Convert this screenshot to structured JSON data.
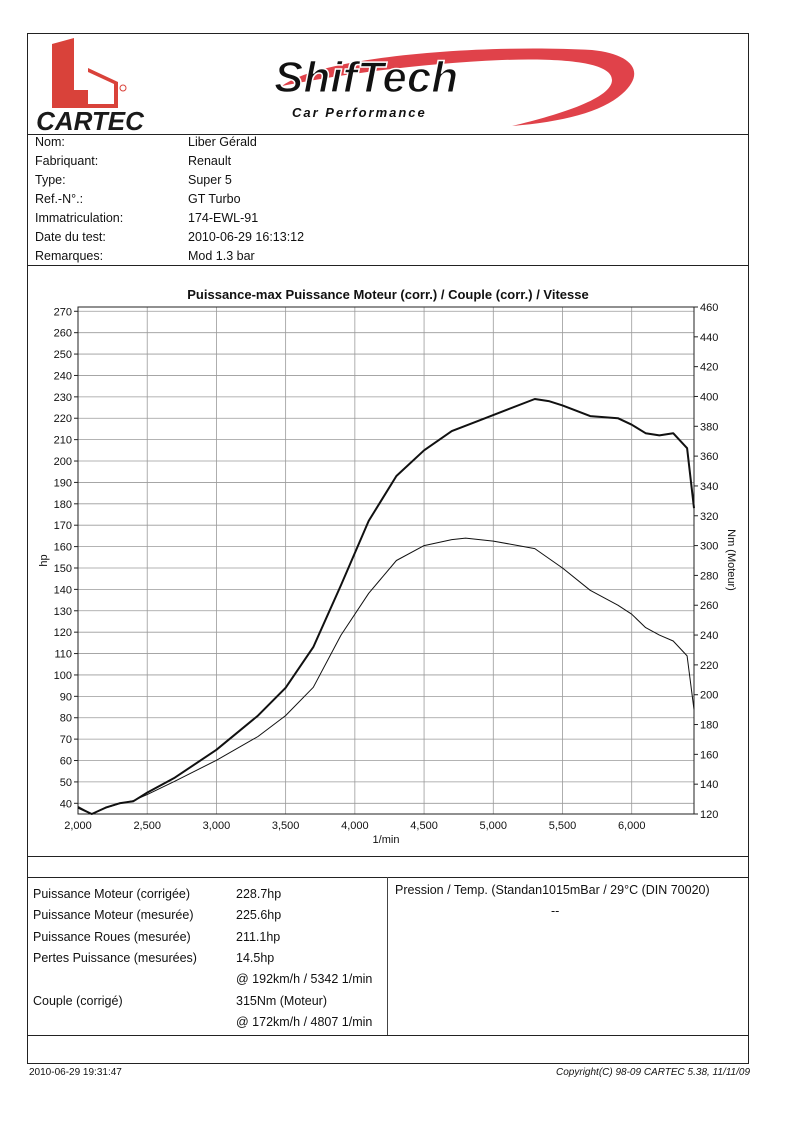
{
  "brand": {
    "cartec_label": "CARTEC",
    "shiftech_title": "ShifTech",
    "shiftech_subtitle": "Car Performance",
    "colors": {
      "red": "#e0424a",
      "dark": "#1a1a1a"
    }
  },
  "info": [
    {
      "label": "Nom:",
      "value": "Liber Gérald"
    },
    {
      "label": "Fabriquant:",
      "value": "Renault"
    },
    {
      "label": "Type:",
      "value": "Super 5"
    },
    {
      "label": "Ref.-N°.:",
      "value": "GT Turbo"
    },
    {
      "label": "Immatriculation:",
      "value": "174-EWL-91"
    },
    {
      "label": "Date du test:",
      "value": "2010-06-29 16:13:12"
    },
    {
      "label": "Remarques:",
      "value": "Mod 1.3 bar"
    }
  ],
  "chart_data": {
    "type": "line",
    "title": "Puissance-max Puissance Moteur (corr.) / Couple (corr.) / Vitesse",
    "xlabel": "1/min",
    "ylabel_left": "hp",
    "ylabel_right": "Nm (Moteur)",
    "xlim": [
      2000,
      6450
    ],
    "ylim_left": [
      35,
      272
    ],
    "ylim_right": [
      120,
      460
    ],
    "x_ticks": [
      2000,
      2500,
      3000,
      3500,
      4000,
      4500,
      5000,
      5500,
      6000
    ],
    "x_tick_labels": [
      "2,000",
      "2,500",
      "3,000",
      "3,500",
      "4,000",
      "4,500",
      "5,000",
      "5,500",
      "6,000"
    ],
    "y_left_ticks": [
      40,
      50,
      60,
      70,
      80,
      90,
      100,
      110,
      120,
      130,
      140,
      150,
      160,
      170,
      180,
      190,
      200,
      210,
      220,
      230,
      240,
      250,
      260,
      270
    ],
    "y_right_ticks": [
      120,
      140,
      160,
      180,
      200,
      220,
      240,
      260,
      280,
      300,
      320,
      340,
      360,
      380,
      400,
      420,
      440,
      460
    ],
    "grid": true,
    "series": [
      {
        "name": "Puissance Moteur (corr.)",
        "axis": "left",
        "x": [
          2000,
          2100,
          2200,
          2300,
          2400,
          2500,
          2700,
          3000,
          3300,
          3500,
          3700,
          3900,
          4100,
          4300,
          4500,
          4700,
          4900,
          5100,
          5300,
          5400,
          5500,
          5700,
          5900,
          6000,
          6100,
          6200,
          6300,
          6400,
          6450
        ],
        "y": [
          38,
          35,
          38,
          40,
          41,
          45,
          52,
          65,
          81,
          94,
          113,
          142,
          172,
          193,
          205,
          214,
          219,
          224,
          229,
          228,
          226,
          221,
          220,
          217,
          213,
          212,
          213,
          206,
          178
        ]
      },
      {
        "name": "Couple (corr.)",
        "axis": "right",
        "x": [
          2000,
          2100,
          2200,
          2300,
          2400,
          2500,
          2700,
          3000,
          3300,
          3500,
          3700,
          3900,
          4100,
          4300,
          4500,
          4700,
          4800,
          5000,
          5300,
          5500,
          5700,
          5900,
          6000,
          6100,
          6200,
          6300,
          6400,
          6450
        ],
        "y": [
          125,
          120,
          124,
          127,
          129,
          133,
          142,
          156,
          172,
          186,
          205,
          240,
          268,
          290,
          300,
          304,
          305,
          303,
          298,
          285,
          270,
          260,
          254,
          245,
          240,
          236,
          226,
          190
        ]
      }
    ]
  },
  "results": {
    "rows": [
      {
        "label": "Puissance Moteur (corrigée)",
        "value": "228.7hp"
      },
      {
        "label": "Puissance Moteur (mesurée)",
        "value": "225.6hp"
      },
      {
        "label": "Puissance Roues (mesurée)",
        "value": "211.1hp"
      },
      {
        "label": "Pertes Puissance (mesurées)",
        "value": "14.5hp"
      },
      {
        "label": "",
        "value": "@ 192km/h / 5342 1/min"
      },
      {
        "label": "Couple (corrigé)",
        "value": "315Nm (Moteur)"
      },
      {
        "label": "",
        "value": "@ 172km/h / 4807 1/min"
      }
    ],
    "conditions": "Pression / Temp. (Standan1015mBar / 29°C   (DIN 70020)",
    "conditions_extra": "--"
  },
  "footer": {
    "printed": "2010-06-29 19:31:47",
    "copyright": "Copyright(C) 98-09 CARTEC 5.38, 11/11/09"
  }
}
